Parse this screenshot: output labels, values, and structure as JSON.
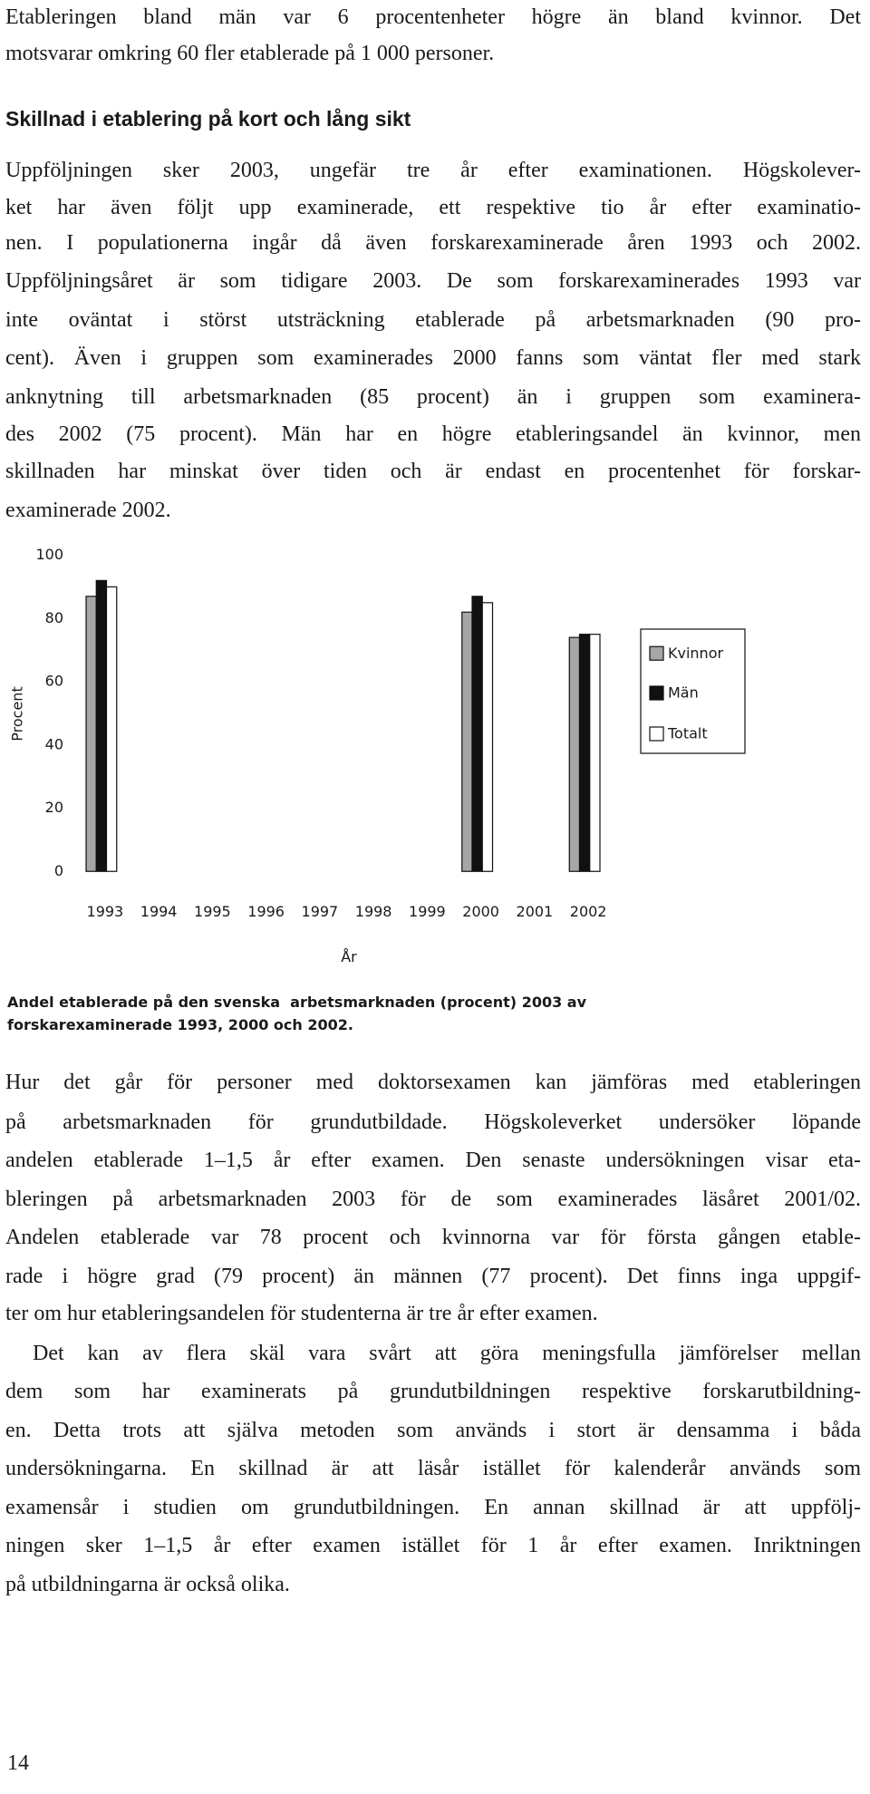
{
  "intro": {
    "lines": [
      "Etableringen bland män var 6 procentenheter högre än bland kvinnor. Det",
      "motsvarar omkring 60 fler etablerade på 1 000 personer."
    ]
  },
  "section_heading": "Skillnad i etablering på kort och lång sikt",
  "section_text": {
    "lines": [
      "Uppföljningen sker 2003, ungefär tre år efter examinationen. Högskolever-",
      "ket har även följt upp examinerade, ett respektive tio år efter examinatio-",
      "nen. I populationerna ingår då även forskarexaminerade åren 1993 och 2002.",
      "Uppföljningsåret är som tidigare 2003. De som forskarexaminerades 1993 var",
      "inte oväntat i störst utsträckning etablerade på arbetsmarknaden (90 pro-",
      "cent). Även i gruppen som examinerades 2000 fanns som väntat fler med stark",
      "anknytning till arbetsmarknaden (85 procent) än i gruppen som examinera-",
      "des 2002 (75 procent). Män har en högre etableringsandel än kvinnor, men",
      "skillnaden har minskat över tiden och är endast en procentenhet för forskar-",
      "examinerade 2002."
    ]
  },
  "chart_data": {
    "type": "bar",
    "title": [
      "Andel etablerade på den svenska  arbetsmarknaden (procent) 2003 av",
      "forskarexaminerade 1993, 2000 och 2002."
    ],
    "y_label": "Procent",
    "x_label": "År",
    "categories": [
      "1993",
      "1994",
      "1995",
      "1996",
      "1997",
      "1998",
      "1999",
      "2000",
      "2001",
      "2002"
    ],
    "series": [
      {
        "name": "Kvinnor",
        "color": "#a6a6a6",
        "values": [
          87,
          null,
          null,
          null,
          null,
          null,
          null,
          82,
          null,
          74
        ]
      },
      {
        "name": "Män",
        "color": "#111111",
        "values": [
          92,
          null,
          null,
          null,
          null,
          null,
          null,
          87,
          null,
          75
        ]
      },
      {
        "name": "Totalt",
        "color": "#ffffff",
        "values": [
          90,
          null,
          null,
          null,
          null,
          null,
          null,
          85,
          null,
          75
        ]
      }
    ],
    "ylim": [
      0,
      100
    ],
    "yticks": [
      0,
      20,
      40,
      60,
      80,
      100
    ],
    "grid": false,
    "legend": "right"
  },
  "after_text": [
    {
      "lines": [
        "Hur det går för personer med doktorsexamen kan jämföras med etableringen",
        "på arbetsmarknaden för grundutbildade. Högskoleverket undersöker löpande",
        "andelen etablerade 1–1,5 år efter examen. Den senaste undersökningen visar eta-",
        "bleringen på arbetsmarknaden 2003 för de som examinerades läsåret 2001/02.",
        "Andelen etablerade var 78 procent och kvinnorna var för första gången etable-",
        "rade i högre grad (79 procent) än männen (77 procent). Det finns inga uppgif-",
        "ter om hur etableringsandelen för studenterna är tre år efter examen."
      ]
    },
    {
      "lines": [
        "Det kan av flera skäl vara svårt att göra meningsfulla jämförelser mellan",
        "dem som har examinerats på grundutbildningen respektive forskarutbildning-",
        "en. Detta trots att själva metoden som används i stort är densamma i båda",
        "undersökningarna. En skillnad är att läsår istället för kalenderår används som",
        "examensår i studien om grundutbildningen. En annan skillnad är att uppfölj-",
        "ningen sker 1–1,5 år efter examen istället för 1 år efter examen. Inriktningen",
        "på utbildningarna är också olika."
      ]
    }
  ],
  "page_number": "14"
}
